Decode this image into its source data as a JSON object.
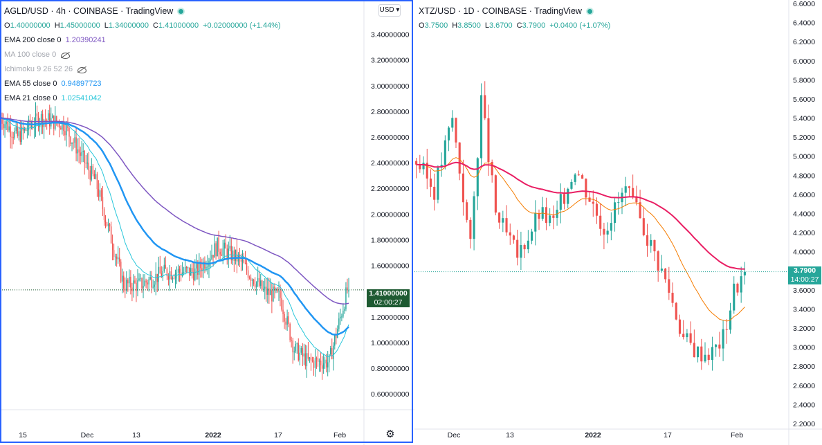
{
  "left_chart": {
    "symbol_title": "AGLD/USD · 4h · COINBASE · TradingView",
    "ohlc": {
      "o_label": "O",
      "o": "1.40000000",
      "h_label": "H",
      "h": "1.45000000",
      "l_label": "L",
      "l": "1.34000000",
      "c_label": "C",
      "c": "1.41000000",
      "change": "+0.02000000 (+1.44%)"
    },
    "indicators": [
      {
        "label": "EMA 200 close 0",
        "value": "1.20390241",
        "color": "#7e57c2",
        "hidden": false
      },
      {
        "label": "MA 100 close 0",
        "value": "",
        "color": "#a4a7af",
        "hidden": true
      },
      {
        "label": "Ichimoku 9 26 52 26",
        "value": "",
        "color": "#a4a7af",
        "hidden": true
      },
      {
        "label": "EMA 55 close 0",
        "value": "0.94897723",
        "color": "#2196f3",
        "hidden": false
      },
      {
        "label": "EMA 21 close 0",
        "value": "1.02541042",
        "color": "#26c6da",
        "hidden": false
      }
    ],
    "currency_button": "USD ▾",
    "price_label": "1.41000000",
    "countdown": "02:00:27",
    "y_ticks": [
      "3.40000000",
      "3.20000000",
      "3.00000000",
      "2.80000000",
      "2.60000000",
      "2.40000000",
      "2.20000000",
      "2.00000000",
      "1.80000000",
      "1.60000000",
      "1.20000000",
      "1.00000000",
      "0.80000000",
      "0.60000000"
    ],
    "x_ticks": [
      "15",
      "Dec",
      "13",
      "2022",
      "17",
      "Feb"
    ]
  },
  "right_chart": {
    "symbol_title": "XTZ/USD · 1D · COINBASE · TradingView",
    "ohlc": {
      "o_label": "O",
      "o": "3.7500",
      "h_label": "H",
      "h": "3.8500",
      "l_label": "L",
      "l": "3.6700",
      "c_label": "C",
      "c": "3.7900",
      "change": "+0.0400 (+1.07%)"
    },
    "price_label": "3.7900",
    "countdown": "14:00:27",
    "y_ticks": [
      "6.6000",
      "6.4000",
      "6.2000",
      "6.0000",
      "5.8000",
      "5.6000",
      "5.4000",
      "5.2000",
      "5.0000",
      "4.8000",
      "4.6000",
      "4.4000",
      "4.2000",
      "4.0000",
      "3.6000",
      "3.4000",
      "3.2000",
      "3.0000",
      "2.8000",
      "2.6000",
      "2.4000",
      "2.2000"
    ],
    "x_ticks": [
      "Dec",
      "13",
      "2022",
      "17",
      "Feb"
    ]
  },
  "colors": {
    "up": "#26a69a",
    "down": "#ef5350",
    "accent": "#2962ff"
  },
  "chart_data": [
    {
      "type": "candlestick",
      "title": "AGLD/USD · 4h · COINBASE · TradingView",
      "ylim": [
        0.52,
        3.5
      ],
      "last_close": 1.41,
      "key_points": {
        "x_index": [
          0,
          12,
          28,
          45,
          68,
          88,
          100,
          118,
          140,
          155,
          170,
          188,
          200,
          210,
          220,
          235,
          248
        ],
        "close": [
          2.75,
          2.6,
          2.75,
          2.7,
          2.25,
          1.45,
          1.45,
          1.55,
          1.55,
          1.75,
          1.65,
          1.4,
          1.35,
          0.95,
          0.85,
          0.85,
          1.41
        ]
      },
      "series": [
        {
          "name": "EMA 200 close 0",
          "last": 1.20390241
        },
        {
          "name": "EMA 55 close 0",
          "last": 0.94897723
        },
        {
          "name": "EMA 21 close 0",
          "last": 1.02541042
        }
      ]
    },
    {
      "type": "candlestick",
      "title": "XTZ/USD · 1D · COINBASE · TradingView",
      "ylim": [
        2.2,
        6.6
      ],
      "last_close": 3.79,
      "key_points": {
        "x_index": [
          0,
          5,
          10,
          15,
          18,
          22,
          28,
          34,
          38,
          44,
          52,
          58,
          63,
          68,
          70,
          74,
          78,
          82,
          85,
          88,
          91
        ],
        "close": [
          4.95,
          4.65,
          5.4,
          4.05,
          5.6,
          4.4,
          3.95,
          4.4,
          4.3,
          4.9,
          4.25,
          4.65,
          4.25,
          3.8,
          3.6,
          3.1,
          2.95,
          2.95,
          3.1,
          3.6,
          3.79
        ]
      }
    }
  ]
}
